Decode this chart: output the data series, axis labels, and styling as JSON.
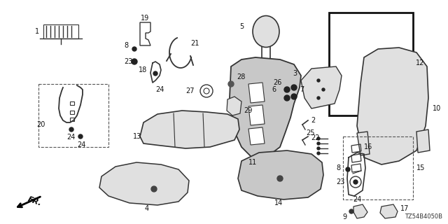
{
  "background_color": "#ffffff",
  "diagram_code": "TZ54B4050B",
  "line_color": "#333333",
  "light_gray": "#e0e0e0",
  "mid_gray": "#c8c8c8"
}
